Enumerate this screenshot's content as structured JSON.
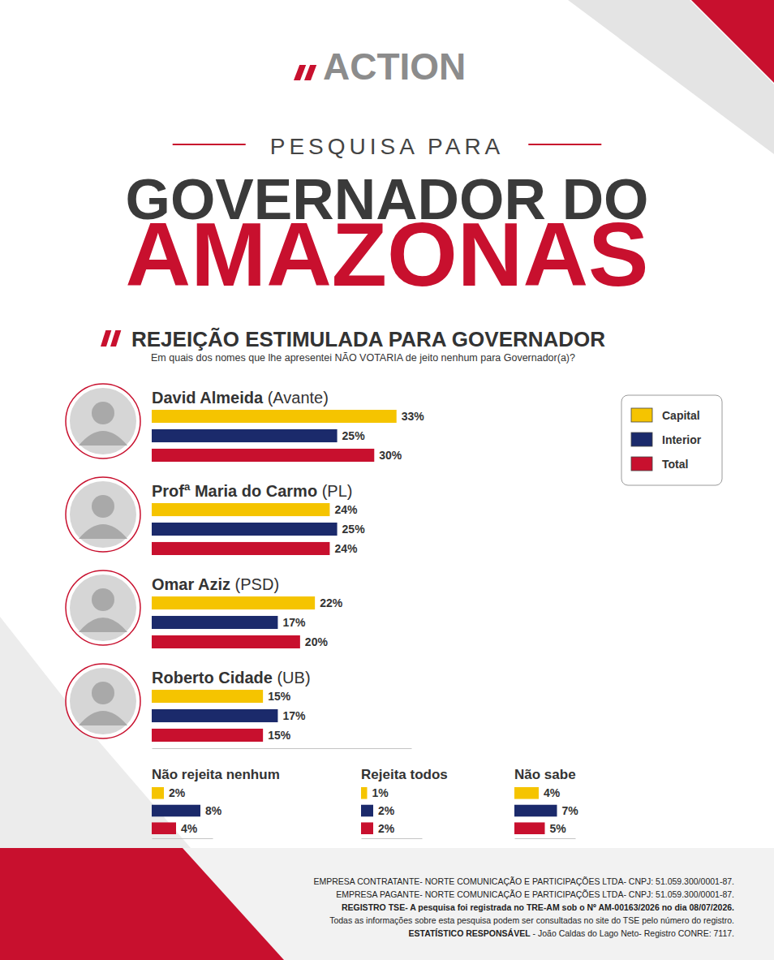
{
  "header": {
    "logo": "ACTION",
    "kicker": "PESQUISA PARA",
    "title_line1": "GOVERNADOR DO",
    "title_line2": "AMAZONAS"
  },
  "chart_data": [
    {
      "type": "bar",
      "orientation": "horizontal",
      "title": "REJEIÇÃO ESTIMULADA PARA GOVERNADOR",
      "subtitle": "Em quais dos nomes que lhe apresentei NÃO VOTARIA de jeito nenhum para Governador(a)?",
      "categories": [
        "David Almeida (Avante)",
        "Profª Maria do Carmo (PL)",
        "Omar Aziz (PSD)",
        "Roberto Cidade (UB)"
      ],
      "series": [
        {
          "name": "Capital",
          "color": "#f5c400",
          "values": [
            33,
            24,
            22,
            15
          ],
          "value_labels": [
            "33%",
            "24%",
            "22%",
            "15%"
          ]
        },
        {
          "name": "Interior",
          "color": "#1b2a6b",
          "values": [
            25,
            25,
            17,
            17
          ],
          "value_labels": [
            "25%",
            "25%",
            "17%",
            "17%"
          ]
        },
        {
          "name": "Total",
          "color": "#c8102e",
          "values": [
            30,
            24,
            20,
            15
          ],
          "value_labels": [
            "30%",
            "24%",
            "20%",
            "15%"
          ]
        }
      ],
      "xlim": [
        0,
        35
      ],
      "xticks": [],
      "tick_labels": false,
      "grid": false,
      "data_labels": true,
      "legend": "right"
    },
    {
      "type": "bar",
      "orientation": "horizontal",
      "categories": [
        "Não rejeita nenhum",
        "Rejeita todos",
        "Não sabe"
      ],
      "series": [
        {
          "name": "Capital",
          "color": "#f5c400",
          "values": [
            2,
            1,
            4
          ],
          "value_labels": [
            "2%",
            "1%",
            "4%"
          ]
        },
        {
          "name": "Interior",
          "color": "#1b2a6b",
          "values": [
            8,
            2,
            7
          ],
          "value_labels": [
            "8%",
            "2%",
            "7%"
          ]
        },
        {
          "name": "Total",
          "color": "#c8102e",
          "values": [
            4,
            2,
            5
          ],
          "value_labels": [
            "4%",
            "2%",
            "5%"
          ]
        }
      ],
      "xlim": [
        0,
        10
      ],
      "xticks": [],
      "tick_labels": false,
      "grid": false,
      "data_labels": true
    }
  ],
  "footer": {
    "lines": [
      "EMPRESA CONTRATANTE- NORTE COMUNICAÇÃO E PARTICIPAÇÕES LTDA- CNPJ: 51.059.300/0001-87.",
      "EMPRESA PAGANTE- NORTE COMUNICAÇÃO E PARTICIPAÇÕES LTDA- CNPJ: 51.059.300/0001-87.",
      "REGISTRO TSE- A pesquisa foi registrada no TRE-AM sob o Nº AM-00163/2026 no dia 08/07/2026.",
      "Todas as informações sobre esta pesquisa podem ser consultadas no site do TSE pelo número do registro."
    ],
    "statistician_label": "ESTATÍSTICO RESPONSÁVEL",
    "statistician": " - João Caldas do Lago Neto- Registro CONRE: 7117."
  }
}
